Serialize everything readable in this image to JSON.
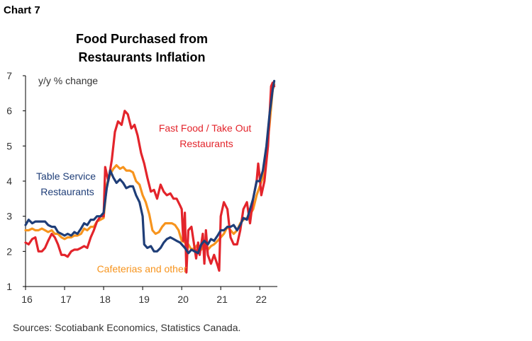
{
  "header": {
    "chart_label": "Chart 7"
  },
  "footer": {
    "source": "Sources: Scotiabank Economics, Statistics Canada."
  },
  "colors": {
    "fast_food": "#e3242b",
    "table_service": "#1f3e78",
    "cafeterias": "#f7941d",
    "axis": "#000000"
  },
  "chart_data": {
    "type": "line",
    "title": "Food Purchased from Restaurants Inflation",
    "title_lines": [
      "Food Purchased from",
      "Restaurants Inflation"
    ],
    "ylabel": "y/y % change",
    "ylim": [
      1,
      7
    ],
    "yticks": [
      1,
      2,
      3,
      4,
      5,
      6,
      7
    ],
    "xlim": [
      2016.0,
      2022.45
    ],
    "xticks": [
      {
        "value": 2016,
        "label": "16"
      },
      {
        "value": 2017,
        "label": "17"
      },
      {
        "value": 2018,
        "label": "18"
      },
      {
        "value": 2019,
        "label": "19"
      },
      {
        "value": 2020,
        "label": "20"
      },
      {
        "value": 2021,
        "label": "21"
      },
      {
        "value": 2022,
        "label": "22"
      }
    ],
    "grid": false,
    "series": [
      {
        "name": "Fast Food / Take Out Restaurants",
        "color_key": "fast_food",
        "label_lines": [
          "Fast Food / Take Out",
          "Restaurants"
        ],
        "points": [
          [
            2016.0,
            2.25
          ],
          [
            2016.08,
            2.2
          ],
          [
            2016.17,
            2.35
          ],
          [
            2016.25,
            2.4
          ],
          [
            2016.33,
            2.0
          ],
          [
            2016.42,
            2.0
          ],
          [
            2016.5,
            2.1
          ],
          [
            2016.58,
            2.3
          ],
          [
            2016.67,
            2.5
          ],
          [
            2016.75,
            2.4
          ],
          [
            2016.83,
            2.2
          ],
          [
            2016.92,
            1.9
          ],
          [
            2017.0,
            1.9
          ],
          [
            2017.08,
            1.85
          ],
          [
            2017.17,
            2.0
          ],
          [
            2017.25,
            2.05
          ],
          [
            2017.33,
            2.05
          ],
          [
            2017.42,
            2.1
          ],
          [
            2017.5,
            2.15
          ],
          [
            2017.58,
            2.1
          ],
          [
            2017.67,
            2.4
          ],
          [
            2017.75,
            2.6
          ],
          [
            2017.83,
            2.85
          ],
          [
            2017.92,
            3.0
          ],
          [
            2018.0,
            3.0
          ],
          [
            2018.04,
            4.4
          ],
          [
            2018.12,
            4.0
          ],
          [
            2018.21,
            4.6
          ],
          [
            2018.29,
            5.4
          ],
          [
            2018.37,
            5.7
          ],
          [
            2018.46,
            5.6
          ],
          [
            2018.54,
            6.0
          ],
          [
            2018.62,
            5.9
          ],
          [
            2018.71,
            5.5
          ],
          [
            2018.79,
            5.6
          ],
          [
            2018.87,
            5.3
          ],
          [
            2018.96,
            4.8
          ],
          [
            2019.04,
            4.5
          ],
          [
            2019.12,
            4.1
          ],
          [
            2019.21,
            3.7
          ],
          [
            2019.29,
            3.75
          ],
          [
            2019.37,
            3.5
          ],
          [
            2019.46,
            3.9
          ],
          [
            2019.54,
            3.7
          ],
          [
            2019.62,
            3.6
          ],
          [
            2019.71,
            3.65
          ],
          [
            2019.79,
            3.5
          ],
          [
            2019.87,
            3.5
          ],
          [
            2019.96,
            3.3
          ],
          [
            2020.0,
            3.2
          ],
          [
            2020.04,
            2.3
          ],
          [
            2020.08,
            3.1
          ],
          [
            2020.12,
            1.4
          ],
          [
            2020.17,
            2.6
          ],
          [
            2020.25,
            2.7
          ],
          [
            2020.29,
            2.4
          ],
          [
            2020.37,
            1.8
          ],
          [
            2020.42,
            2.25
          ],
          [
            2020.46,
            1.9
          ],
          [
            2020.54,
            2.5
          ],
          [
            2020.58,
            1.65
          ],
          [
            2020.62,
            2.6
          ],
          [
            2020.67,
            1.9
          ],
          [
            2020.75,
            1.65
          ],
          [
            2020.83,
            1.9
          ],
          [
            2020.92,
            1.6
          ],
          [
            2020.96,
            1.45
          ],
          [
            2021.0,
            3.0
          ],
          [
            2021.08,
            3.4
          ],
          [
            2021.17,
            3.2
          ],
          [
            2021.25,
            2.4
          ],
          [
            2021.33,
            2.2
          ],
          [
            2021.42,
            2.2
          ],
          [
            2021.5,
            2.6
          ],
          [
            2021.58,
            3.2
          ],
          [
            2021.67,
            3.4
          ],
          [
            2021.75,
            2.8
          ],
          [
            2021.83,
            3.5
          ],
          [
            2021.92,
            4.0
          ],
          [
            2021.96,
            4.5
          ],
          [
            2022.0,
            4.1
          ],
          [
            2022.04,
            3.6
          ],
          [
            2022.12,
            4.0
          ],
          [
            2022.21,
            5.0
          ],
          [
            2022.29,
            6.7
          ],
          [
            2022.33,
            6.8
          ],
          [
            2022.37,
            6.7
          ]
        ]
      },
      {
        "name": "Table Service Restaurants",
        "color_key": "table_service",
        "label_lines": [
          "Table Service",
          "Restaurants"
        ],
        "points": [
          [
            2016.0,
            2.75
          ],
          [
            2016.08,
            2.9
          ],
          [
            2016.17,
            2.8
          ],
          [
            2016.25,
            2.85
          ],
          [
            2016.33,
            2.85
          ],
          [
            2016.42,
            2.85
          ],
          [
            2016.5,
            2.85
          ],
          [
            2016.58,
            2.75
          ],
          [
            2016.67,
            2.7
          ],
          [
            2016.75,
            2.7
          ],
          [
            2016.83,
            2.55
          ],
          [
            2016.92,
            2.5
          ],
          [
            2017.0,
            2.45
          ],
          [
            2017.08,
            2.5
          ],
          [
            2017.17,
            2.45
          ],
          [
            2017.25,
            2.55
          ],
          [
            2017.33,
            2.5
          ],
          [
            2017.42,
            2.65
          ],
          [
            2017.5,
            2.8
          ],
          [
            2017.58,
            2.75
          ],
          [
            2017.67,
            2.9
          ],
          [
            2017.75,
            2.9
          ],
          [
            2017.83,
            3.0
          ],
          [
            2017.92,
            3.0
          ],
          [
            2018.0,
            3.1
          ],
          [
            2018.08,
            3.8
          ],
          [
            2018.17,
            4.3
          ],
          [
            2018.25,
            4.1
          ],
          [
            2018.33,
            3.95
          ],
          [
            2018.42,
            4.05
          ],
          [
            2018.5,
            3.95
          ],
          [
            2018.58,
            3.8
          ],
          [
            2018.67,
            3.85
          ],
          [
            2018.75,
            3.85
          ],
          [
            2018.83,
            3.6
          ],
          [
            2018.92,
            3.4
          ],
          [
            2019.0,
            3.0
          ],
          [
            2019.04,
            2.2
          ],
          [
            2019.12,
            2.1
          ],
          [
            2019.21,
            2.15
          ],
          [
            2019.29,
            2.0
          ],
          [
            2019.37,
            2.0
          ],
          [
            2019.46,
            2.1
          ],
          [
            2019.54,
            2.25
          ],
          [
            2019.62,
            2.35
          ],
          [
            2019.71,
            2.4
          ],
          [
            2019.79,
            2.35
          ],
          [
            2019.87,
            2.3
          ],
          [
            2019.96,
            2.25
          ],
          [
            2020.0,
            2.2
          ],
          [
            2020.08,
            2.1
          ],
          [
            2020.17,
            1.95
          ],
          [
            2020.25,
            2.05
          ],
          [
            2020.33,
            2.0
          ],
          [
            2020.42,
            1.95
          ],
          [
            2020.5,
            2.2
          ],
          [
            2020.58,
            2.3
          ],
          [
            2020.67,
            2.2
          ],
          [
            2020.75,
            2.35
          ],
          [
            2020.83,
            2.3
          ],
          [
            2020.92,
            2.45
          ],
          [
            2021.0,
            2.6
          ],
          [
            2021.08,
            2.6
          ],
          [
            2021.17,
            2.7
          ],
          [
            2021.25,
            2.7
          ],
          [
            2021.33,
            2.75
          ],
          [
            2021.42,
            2.6
          ],
          [
            2021.5,
            2.75
          ],
          [
            2021.58,
            2.95
          ],
          [
            2021.67,
            2.9
          ],
          [
            2021.75,
            3.2
          ],
          [
            2021.83,
            3.5
          ],
          [
            2021.92,
            4.0
          ],
          [
            2022.0,
            4.0
          ],
          [
            2022.08,
            4.3
          ],
          [
            2022.17,
            5.0
          ],
          [
            2022.25,
            5.9
          ],
          [
            2022.33,
            6.6
          ],
          [
            2022.37,
            6.85
          ]
        ]
      },
      {
        "name": "Cafeterias and other",
        "color_key": "cafeterias",
        "label_lines": [
          "Cafeterias and other"
        ],
        "points": [
          [
            2016.0,
            2.6
          ],
          [
            2016.08,
            2.6
          ],
          [
            2016.17,
            2.65
          ],
          [
            2016.25,
            2.6
          ],
          [
            2016.33,
            2.6
          ],
          [
            2016.42,
            2.65
          ],
          [
            2016.5,
            2.6
          ],
          [
            2016.58,
            2.55
          ],
          [
            2016.67,
            2.6
          ],
          [
            2016.75,
            2.5
          ],
          [
            2016.83,
            2.5
          ],
          [
            2016.92,
            2.4
          ],
          [
            2017.0,
            2.35
          ],
          [
            2017.08,
            2.4
          ],
          [
            2017.17,
            2.4
          ],
          [
            2017.25,
            2.45
          ],
          [
            2017.33,
            2.45
          ],
          [
            2017.42,
            2.5
          ],
          [
            2017.5,
            2.65
          ],
          [
            2017.58,
            2.6
          ],
          [
            2017.67,
            2.7
          ],
          [
            2017.75,
            2.7
          ],
          [
            2017.83,
            2.85
          ],
          [
            2017.92,
            2.9
          ],
          [
            2018.0,
            2.95
          ],
          [
            2018.08,
            3.9
          ],
          [
            2018.17,
            4.2
          ],
          [
            2018.25,
            4.35
          ],
          [
            2018.33,
            4.45
          ],
          [
            2018.42,
            4.35
          ],
          [
            2018.5,
            4.4
          ],
          [
            2018.58,
            4.3
          ],
          [
            2018.67,
            4.3
          ],
          [
            2018.75,
            4.25
          ],
          [
            2018.83,
            4.0
          ],
          [
            2018.92,
            3.9
          ],
          [
            2019.0,
            3.6
          ],
          [
            2019.08,
            3.4
          ],
          [
            2019.17,
            3.05
          ],
          [
            2019.25,
            2.6
          ],
          [
            2019.33,
            2.5
          ],
          [
            2019.42,
            2.55
          ],
          [
            2019.5,
            2.7
          ],
          [
            2019.58,
            2.8
          ],
          [
            2019.67,
            2.8
          ],
          [
            2019.75,
            2.8
          ],
          [
            2019.83,
            2.75
          ],
          [
            2019.92,
            2.6
          ],
          [
            2020.0,
            2.3
          ],
          [
            2020.08,
            2.25
          ],
          [
            2020.17,
            2.2
          ],
          [
            2020.25,
            2.05
          ],
          [
            2020.33,
            2.1
          ],
          [
            2020.42,
            2.2
          ],
          [
            2020.5,
            2.05
          ],
          [
            2020.58,
            2.25
          ],
          [
            2020.67,
            2.05
          ],
          [
            2020.75,
            2.15
          ],
          [
            2020.83,
            2.2
          ],
          [
            2020.92,
            2.3
          ],
          [
            2021.0,
            2.4
          ],
          [
            2021.08,
            2.5
          ],
          [
            2021.17,
            2.7
          ],
          [
            2021.25,
            2.6
          ],
          [
            2021.33,
            2.5
          ],
          [
            2021.42,
            2.6
          ],
          [
            2021.5,
            2.8
          ],
          [
            2021.58,
            2.9
          ],
          [
            2021.67,
            2.95
          ],
          [
            2021.75,
            3.05
          ],
          [
            2021.83,
            3.2
          ],
          [
            2021.92,
            3.6
          ],
          [
            2022.0,
            3.85
          ],
          [
            2022.08,
            4.1
          ],
          [
            2022.17,
            4.8
          ],
          [
            2022.25,
            5.6
          ],
          [
            2022.33,
            6.6
          ],
          [
            2022.37,
            6.75
          ]
        ]
      }
    ]
  }
}
